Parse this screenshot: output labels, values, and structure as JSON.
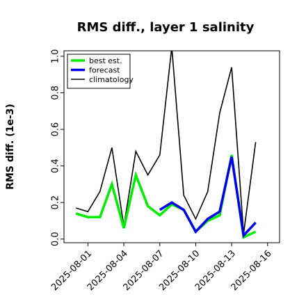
{
  "chart_data": {
    "type": "line",
    "title": "RMS diff., layer 1 salinity",
    "xlabel": "",
    "ylabel": "RMS diff. (1e-3)",
    "ylim": [
      -0.02,
      1.03
    ],
    "xlim": [
      "2025-07-30",
      "2025-08-17"
    ],
    "legend": "top-left",
    "grid": false,
    "x_ticks": [
      {
        "label": "2025-08-01",
        "color": "#000000"
      },
      {
        "label": "2025-08-04",
        "color": "#000000"
      },
      {
        "label": "2025-08-07",
        "color": "#2e8b22"
      },
      {
        "label": "2025-08-10",
        "color": "#000000"
      },
      {
        "label": "2025-08-13",
        "color": "#000000"
      },
      {
        "label": "2025-08-16",
        "color": "#000000"
      }
    ],
    "y_ticks": [
      "0.0",
      "0.2",
      "0.4",
      "0.6",
      "0.8",
      "1.0"
    ],
    "series": [
      {
        "name": "best est.",
        "color": "#00ee00",
        "x": [
          "2025-07-31",
          "2025-08-01",
          "2025-08-02",
          "2025-08-03",
          "2025-08-04",
          "2025-08-05",
          "2025-08-06",
          "2025-08-07",
          "2025-08-08",
          "2025-08-09",
          "2025-08-10",
          "2025-08-11",
          "2025-08-12",
          "2025-08-13",
          "2025-08-14",
          "2025-08-15"
        ],
        "values": [
          0.14,
          0.12,
          0.12,
          0.3,
          0.06,
          0.35,
          0.18,
          0.13,
          0.19,
          0.16,
          0.04,
          0.1,
          0.13,
          0.46,
          0.01,
          0.04
        ]
      },
      {
        "name": "forecast",
        "color": "#0000ee",
        "x": [
          "2025-08-07",
          "2025-08-08",
          "2025-08-09",
          "2025-08-10",
          "2025-08-11",
          "2025-08-12",
          "2025-08-13",
          "2025-08-14",
          "2025-08-15"
        ],
        "values": [
          0.16,
          0.2,
          0.16,
          0.04,
          0.11,
          0.15,
          0.45,
          0.02,
          0.09
        ]
      },
      {
        "name": "climatology",
        "color": "#000000",
        "x": [
          "2025-07-31",
          "2025-08-01",
          "2025-08-02",
          "2025-08-03",
          "2025-08-04",
          "2025-08-05",
          "2025-08-06",
          "2025-08-07",
          "2025-08-08",
          "2025-08-09",
          "2025-08-10",
          "2025-08-11",
          "2025-08-12",
          "2025-08-13",
          "2025-08-14",
          "2025-08-15"
        ],
        "values": [
          0.17,
          0.15,
          0.26,
          0.5,
          0.07,
          0.48,
          0.35,
          0.46,
          1.05,
          0.24,
          0.11,
          0.26,
          0.69,
          0.94,
          0.03,
          0.53
        ]
      }
    ]
  }
}
